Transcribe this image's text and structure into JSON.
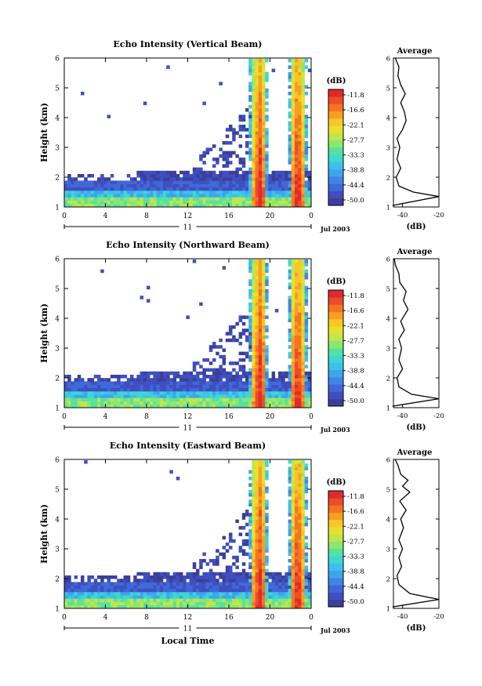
{
  "chart_data": [
    {
      "type": "heatmap",
      "title": "Echo Intensity (Vertical Beam)",
      "ylabel": "Height (km)",
      "ylim": [
        1,
        6
      ],
      "yticks": [
        "1",
        "2",
        "3",
        "4",
        "5",
        "6"
      ],
      "xlim": [
        0,
        24
      ],
      "xticks": [
        "0",
        "4",
        "8",
        "12",
        "16",
        "20",
        "0"
      ],
      "day_label": "11",
      "date_label": "Jul 2003",
      "cbar_unit": "(dB)",
      "cbar_ticks": [
        "-11.8",
        "-16.6",
        "-22.1",
        "-27.7",
        "-33.3",
        "-38.8",
        "-44.4",
        "-50.0"
      ],
      "avg_title": "Average",
      "avg_xlabel": "(dB)",
      "avg_xticks": [
        "-40",
        "-20"
      ],
      "avg_xlim": [
        -45,
        -20
      ],
      "avg_profile": [
        [
          -19,
          1.35
        ],
        [
          -34,
          1.5
        ],
        [
          -42,
          1.7
        ],
        [
          -43.5,
          2.0
        ],
        [
          -41,
          2.3
        ],
        [
          -43,
          2.6
        ],
        [
          -41.5,
          3.0
        ],
        [
          -43,
          3.3
        ],
        [
          -40,
          3.6
        ],
        [
          -38,
          3.9
        ],
        [
          -39,
          4.2
        ],
        [
          -41,
          4.5
        ],
        [
          -38.5,
          4.8
        ],
        [
          -41,
          5.1
        ],
        [
          -42.5,
          5.4
        ],
        [
          -42,
          5.7
        ],
        [
          -44,
          6.0
        ]
      ]
    },
    {
      "type": "heatmap",
      "title": "Echo Intensity (Northward Beam)",
      "ylabel": "Height (km)",
      "ylim": [
        1,
        6
      ],
      "yticks": [
        "1",
        "2",
        "3",
        "4",
        "5",
        "6"
      ],
      "xlim": [
        0,
        24
      ],
      "xticks": [
        "0",
        "4",
        "8",
        "12",
        "16",
        "20",
        "0"
      ],
      "day_label": "11",
      "date_label": "Jul 2003",
      "cbar_unit": "(dB)",
      "cbar_ticks": [
        "-11.8",
        "-16.6",
        "-22.1",
        "-27.7",
        "-33.3",
        "-38.8",
        "-44.4",
        "-50.0"
      ],
      "avg_title": "Average",
      "avg_xlabel": "(dB)",
      "avg_xticks": [
        "-40",
        "-20"
      ],
      "avg_xlim": [
        -45,
        -20
      ],
      "avg_profile": [
        [
          -19,
          1.3
        ],
        [
          -35,
          1.45
        ],
        [
          -42,
          1.7
        ],
        [
          -43,
          2.0
        ],
        [
          -40,
          2.3
        ],
        [
          -42,
          2.6
        ],
        [
          -40.5,
          3.0
        ],
        [
          -42,
          3.3
        ],
        [
          -39,
          3.6
        ],
        [
          -41,
          3.9
        ],
        [
          -37,
          4.3
        ],
        [
          -39.5,
          4.6
        ],
        [
          -38,
          4.9
        ],
        [
          -41.5,
          5.2
        ],
        [
          -42,
          5.5
        ],
        [
          -44,
          5.8
        ],
        [
          -44.5,
          6.0
        ]
      ]
    },
    {
      "type": "heatmap",
      "title": "Echo Intensity (Eastward Beam)",
      "ylabel": "Height (km)",
      "xlabel": "Local Time",
      "ylim": [
        1,
        6
      ],
      "yticks": [
        "1",
        "2",
        "3",
        "4",
        "5",
        "6"
      ],
      "xlim": [
        0,
        24
      ],
      "xticks": [
        "0",
        "4",
        "8",
        "12",
        "16",
        "20",
        "0"
      ],
      "day_label": "11",
      "date_label": "Jul 2003",
      "cbar_unit": "(dB)",
      "cbar_ticks": [
        "-11.8",
        "-16.6",
        "-22.1",
        "-27.7",
        "-33.3",
        "-38.8",
        "-44.4",
        "-50.0"
      ],
      "avg_title": "Average",
      "avg_xlabel": "(dB)",
      "avg_xticks": [
        "-40",
        "-20"
      ],
      "avg_xlim": [
        -45,
        -20
      ],
      "avg_profile": [
        [
          -19,
          1.3
        ],
        [
          -36,
          1.5
        ],
        [
          -42,
          1.8
        ],
        [
          -43,
          2.1
        ],
        [
          -40.5,
          2.4
        ],
        [
          -42,
          2.7
        ],
        [
          -40,
          3.0
        ],
        [
          -42,
          3.3
        ],
        [
          -39.5,
          3.7
        ],
        [
          -41,
          4.0
        ],
        [
          -38,
          4.3
        ],
        [
          -41.5,
          4.6
        ],
        [
          -36,
          4.9
        ],
        [
          -40,
          5.1
        ],
        [
          -37,
          5.3
        ],
        [
          -41,
          5.5
        ],
        [
          -42.5,
          5.8
        ],
        [
          -44,
          6.0
        ]
      ]
    }
  ]
}
